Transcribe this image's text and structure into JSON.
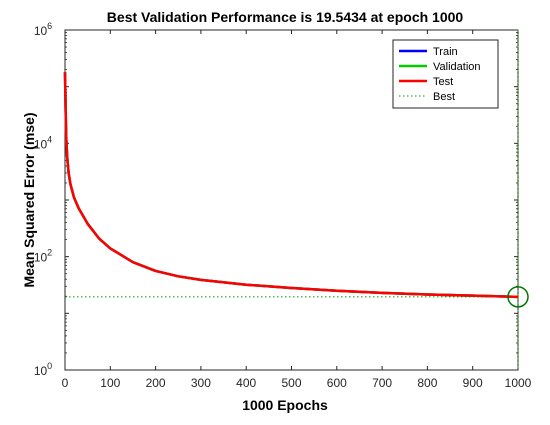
{
  "chart_data": {
    "type": "line",
    "title": "Best Validation Performance is 19.5434 at epoch 1000",
    "xlabel": "1000 Epochs",
    "ylabel": "Mean Squared Error  (mse)",
    "xlim": [
      0,
      1000
    ],
    "ylim": [
      1,
      1000000
    ],
    "yscale": "log",
    "grid": false,
    "legend_position": "top-right",
    "x_ticks": [
      "0",
      "100",
      "200",
      "300",
      "400",
      "500",
      "600",
      "700",
      "800",
      "900",
      "1000"
    ],
    "y_ticks": [
      {
        "base": "10",
        "exp": "0"
      },
      {
        "base": "10",
        "exp": "2"
      },
      {
        "base": "10",
        "exp": "4"
      },
      {
        "base": "10",
        "exp": "6"
      }
    ],
    "series": [
      {
        "name": "Train",
        "color": "#0000ff",
        "style": "solid",
        "x": [
          0,
          1,
          2,
          3,
          5,
          8,
          12,
          20,
          30,
          50,
          75,
          100,
          150,
          200,
          250,
          300,
          400,
          500,
          600,
          700,
          800,
          900,
          1000
        ],
        "y": [
          180000,
          60000,
          22000,
          11000,
          5500,
          3000,
          1900,
          1100,
          720,
          380,
          210,
          140,
          80,
          56,
          45,
          39,
          32,
          28,
          25,
          23,
          21.5,
          20.5,
          19.5
        ]
      },
      {
        "name": "Validation",
        "color": "#00cc00",
        "style": "solid",
        "x": [
          0,
          1,
          2,
          3,
          5,
          8,
          12,
          20,
          30,
          50,
          75,
          100,
          150,
          200,
          250,
          300,
          400,
          500,
          600,
          700,
          800,
          900,
          1000
        ],
        "y": [
          180000,
          60000,
          22000,
          11000,
          5500,
          3000,
          1900,
          1100,
          720,
          380,
          210,
          140,
          80,
          56,
          45,
          39,
          32,
          28,
          25,
          23,
          21.5,
          20.5,
          19.5434
        ]
      },
      {
        "name": "Test",
        "color": "#ff0000",
        "style": "solid",
        "x": [
          0,
          1,
          2,
          3,
          5,
          8,
          12,
          20,
          30,
          50,
          75,
          100,
          150,
          200,
          250,
          300,
          400,
          500,
          600,
          700,
          800,
          900,
          1000
        ],
        "y": [
          180000,
          60000,
          22000,
          11000,
          5500,
          3000,
          1900,
          1100,
          720,
          380,
          210,
          140,
          80,
          56,
          45,
          39,
          32,
          28,
          25,
          23,
          21.5,
          20.5,
          19.5
        ]
      },
      {
        "name": "Best",
        "color": "#009900",
        "style": "dotted"
      }
    ],
    "best": {
      "epoch": 1000,
      "value": 19.5434
    }
  }
}
